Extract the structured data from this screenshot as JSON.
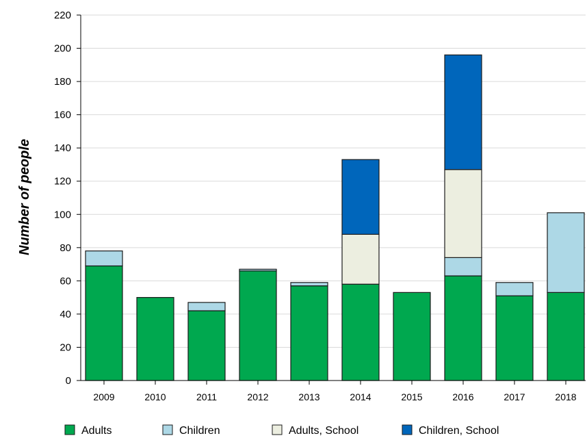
{
  "chart_data": {
    "type": "bar",
    "stacked": true,
    "title": "",
    "xlabel": "",
    "ylabel": "Number of people",
    "ylim": [
      0,
      220
    ],
    "yticks": [
      0,
      20,
      40,
      60,
      80,
      100,
      120,
      140,
      160,
      180,
      200,
      220
    ],
    "grid": true,
    "legend_position": "bottom",
    "categories": [
      "2009",
      "2010",
      "2011",
      "2012",
      "2013",
      "2014",
      "2015",
      "2016",
      "2017",
      "2018"
    ],
    "series": [
      {
        "name": "Adults",
        "color": "#00a84f",
        "values": [
          69,
          50,
          42,
          66,
          57,
          58,
          53,
          63,
          51,
          53
        ]
      },
      {
        "name": "Children",
        "color": "#add8e6",
        "values": [
          9,
          0,
          5,
          1,
          2,
          0,
          0,
          11,
          8,
          48
        ]
      },
      {
        "name": "Adults, School",
        "color": "#eceee0",
        "values": [
          0,
          0,
          0,
          0,
          0,
          30,
          0,
          53,
          0,
          0
        ]
      },
      {
        "name": "Children, School",
        "color": "#0066bb",
        "values": [
          0,
          0,
          0,
          0,
          0,
          45,
          0,
          69,
          0,
          0
        ]
      }
    ]
  }
}
